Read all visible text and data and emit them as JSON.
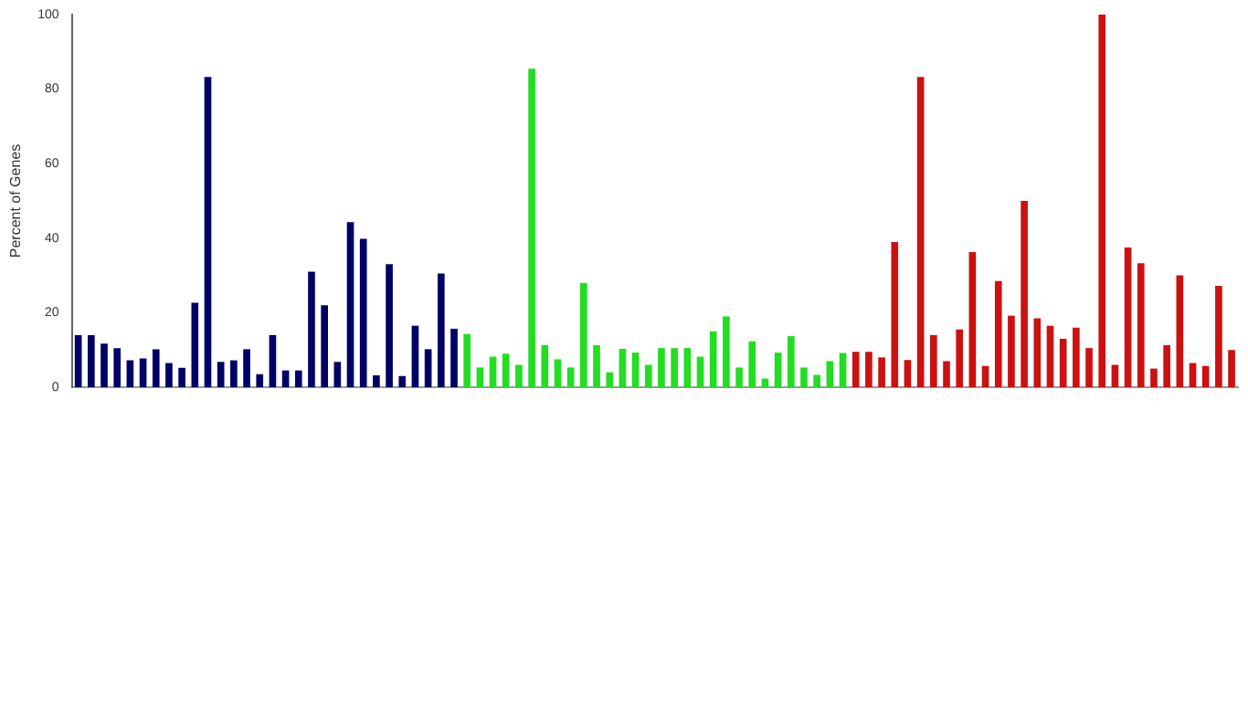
{
  "chart_data": {
    "type": "bar",
    "ylabel": "Percent of Genes",
    "categories": [
      null,
      null,
      null,
      null,
      null,
      null,
      null,
      null,
      null,
      null,
      null,
      null,
      null,
      null,
      null,
      null,
      null,
      null,
      null,
      null,
      null,
      null,
      null,
      null,
      null,
      null,
      null,
      null,
      null,
      null,
      null,
      null,
      null,
      null,
      null,
      null,
      null,
      null,
      null,
      null,
      null,
      null,
      null,
      null,
      null,
      null,
      null,
      null,
      null,
      null,
      null,
      null,
      null,
      null,
      null,
      null,
      null,
      null,
      null,
      null,
      null,
      null,
      null,
      null,
      null,
      null,
      null,
      null,
      null,
      null,
      null,
      null,
      null,
      null,
      null,
      null,
      null,
      null,
      null,
      null,
      null,
      null,
      null,
      null,
      null,
      null,
      null,
      null,
      null,
      null
    ],
    "values": [
      14,
      14,
      11.7,
      10.5,
      7.2,
      7.7,
      10.2,
      6.5,
      5.2,
      22.7,
      83.3,
      6.8,
      7.2,
      10.2,
      3.5,
      14,
      4.5,
      4.5,
      31,
      22,
      6.8,
      44.3,
      39.8,
      3.2,
      33,
      3,
      16.5,
      10.2,
      30.5,
      15.7,
      14.3,
      5.3,
      8.2,
      9,
      6,
      85.5,
      11.3,
      7.5,
      5.3,
      28,
      11.3,
      4,
      10.3,
      9.3,
      6,
      10.5,
      10.5,
      10.5,
      8.2,
      15,
      19,
      5.3,
      12.3,
      2.3,
      9.3,
      13.7,
      5.3,
      3.3,
      7,
      9.2,
      9.5,
      9.5,
      8,
      39,
      7.3,
      83.3,
      14,
      7,
      15.5,
      36.3,
      5.7,
      28.5,
      19.2,
      50,
      18.5,
      16.5,
      13,
      16,
      10.5,
      100,
      6,
      37.5,
      33.3,
      5,
      11.3,
      30,
      6.5,
      5.7,
      27.2,
      10
    ],
    "colors": [
      "#000066",
      "#000066",
      "#000066",
      "#000066",
      "#000066",
      "#000066",
      "#000066",
      "#000066",
      "#000066",
      "#000066",
      "#000066",
      "#000066",
      "#000066",
      "#000066",
      "#000066",
      "#000066",
      "#000066",
      "#000066",
      "#000066",
      "#000066",
      "#000066",
      "#000066",
      "#000066",
      "#000066",
      "#000066",
      "#000066",
      "#000066",
      "#000066",
      "#000066",
      "#000066",
      "#22dd22",
      "#22dd22",
      "#22dd22",
      "#22dd22",
      "#22dd22",
      "#22dd22",
      "#22dd22",
      "#22dd22",
      "#22dd22",
      "#22dd22",
      "#22dd22",
      "#22dd22",
      "#22dd22",
      "#22dd22",
      "#22dd22",
      "#22dd22",
      "#22dd22",
      "#22dd22",
      "#22dd22",
      "#22dd22",
      "#22dd22",
      "#22dd22",
      "#22dd22",
      "#22dd22",
      "#22dd22",
      "#22dd22",
      "#22dd22",
      "#22dd22",
      "#22dd22",
      "#22dd22",
      "#cc1111",
      "#cc1111",
      "#cc1111",
      "#cc1111",
      "#cc1111",
      "#cc1111",
      "#cc1111",
      "#cc1111",
      "#cc1111",
      "#cc1111",
      "#cc1111",
      "#cc1111",
      "#cc1111",
      "#cc1111",
      "#cc1111",
      "#cc1111",
      "#cc1111",
      "#cc1111",
      "#cc1111",
      "#cc1111",
      "#cc1111",
      "#cc1111",
      "#cc1111",
      "#cc1111",
      "#cc1111",
      "#cc1111",
      "#cc1111",
      "#cc1111",
      "#cc1111",
      "#cc1111"
    ],
    "ylim": [
      0,
      100
    ],
    "yticks": [
      0,
      20,
      40,
      60,
      80,
      100
    ],
    "grid": false,
    "legend": false
  }
}
